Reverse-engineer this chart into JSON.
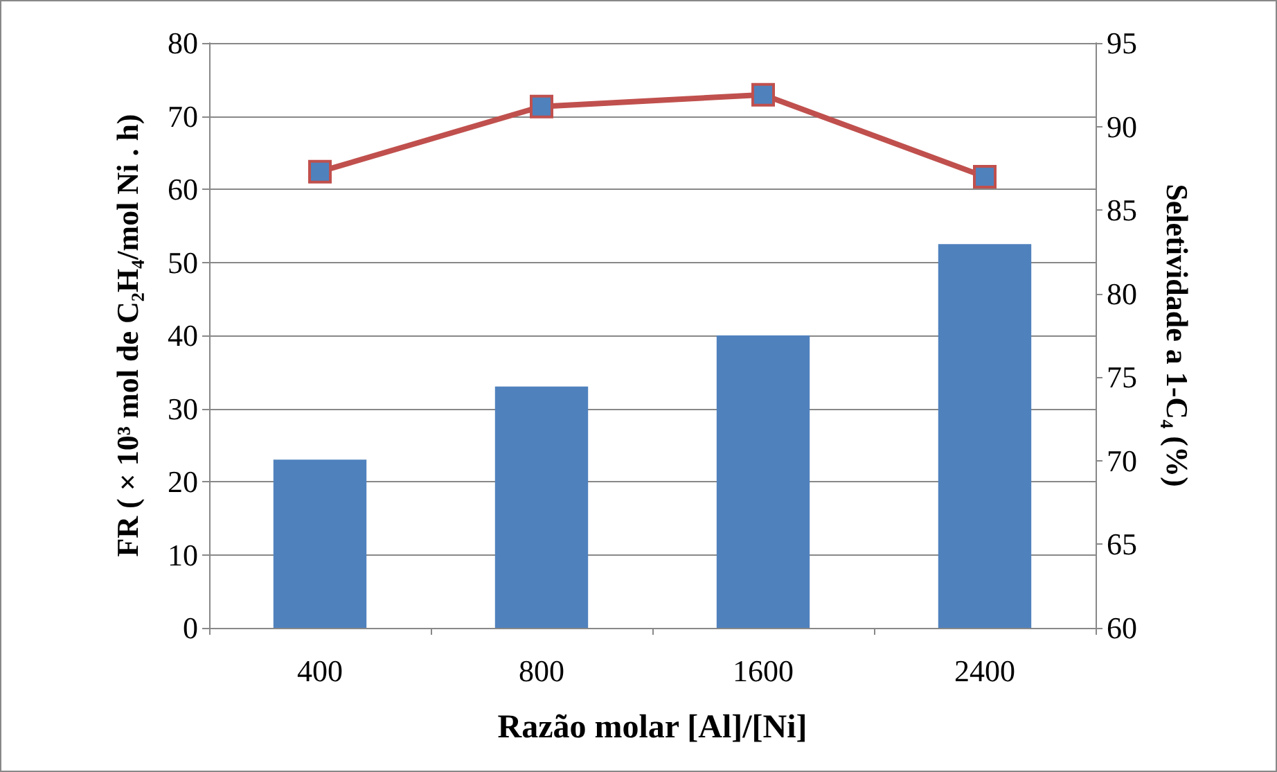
{
  "chart_data": {
    "type": "bar",
    "xlabel": "Razão molar [Al]/[Ni]",
    "ylabel": "FR ( × 10³ mol de C₂H₄/mol Ni . h)",
    "y2label": "Seletividade a 1-C₄ (%)",
    "categories": [
      "400",
      "800",
      "1600",
      "2400"
    ],
    "series": [
      {
        "color": "#4f81bd",
        "values": [
          23,
          33,
          40,
          52.5
        ]
      },
      {
        "type": "line",
        "axis": "y2",
        "color": "#c0504d",
        "marker": "square",
        "values": [
          87.3,
          91.2,
          91.9,
          87.0
        ]
      }
    ],
    "ylim": [
      0,
      80
    ],
    "yticks": [
      0,
      10,
      20,
      30,
      40,
      50,
      60,
      70,
      80
    ],
    "y2lim": [
      60,
      95
    ],
    "y2ticks": [
      60,
      65,
      70,
      75,
      80,
      85,
      90,
      95
    ],
    "grid": "y"
  }
}
